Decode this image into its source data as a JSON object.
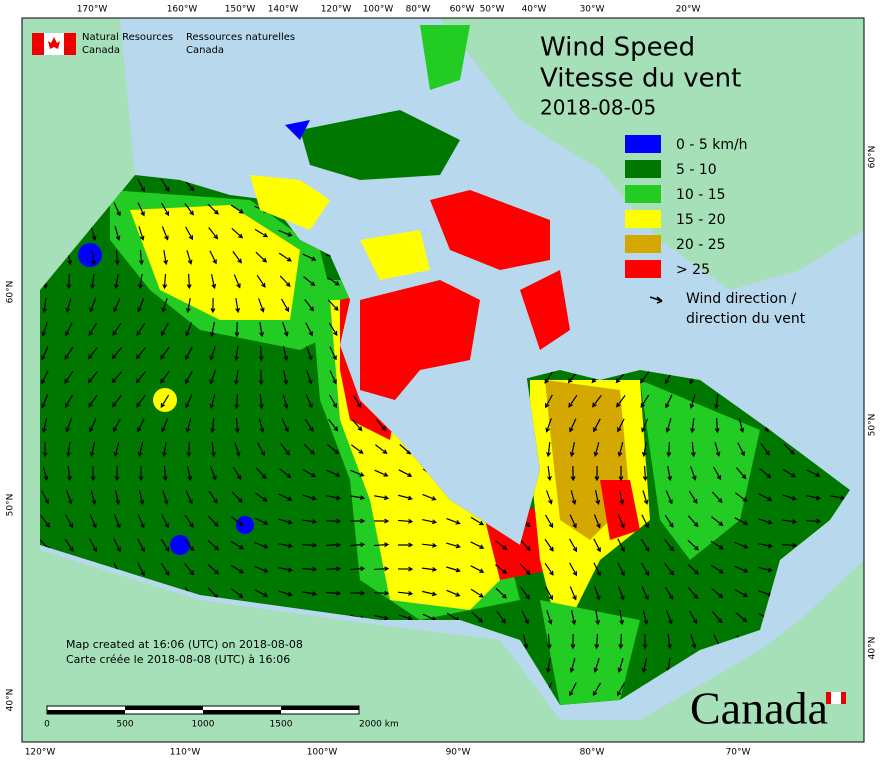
{
  "header": {
    "agency_en": [
      "Natural Resources",
      "Canada"
    ],
    "agency_fr": [
      "Ressources naturelles",
      "Canada"
    ]
  },
  "title": {
    "lines": [
      "Wind Speed",
      "Vitesse du vent"
    ],
    "date": "2018-08-05"
  },
  "legend": {
    "items": [
      {
        "label": "0 - 5 km/h",
        "color": "#0000ff"
      },
      {
        "label": "5 - 10",
        "color": "#007800"
      },
      {
        "label": "10 - 15",
        "color": "#22cc22"
      },
      {
        "label": "15 - 20",
        "color": "#ffff00"
      },
      {
        "label": "20 - 25",
        "color": "#d4a800"
      },
      {
        "label": "> 25",
        "color": "#ff0000"
      }
    ],
    "arrow_label": [
      "Wind direction /",
      "direction du vent"
    ]
  },
  "graticule": {
    "top": [
      "170°W",
      "160°W",
      "150°W",
      "140°W",
      "120°W",
      "100°W",
      "80°W",
      "60°W",
      "50°W",
      "40°W",
      "30°W",
      "20°W"
    ],
    "bottom": [
      "120°W",
      "110°W",
      "100°W",
      "90°W",
      "80°W",
      "70°W"
    ],
    "left": [
      "60°N",
      "50°N",
      "40°N"
    ],
    "right": [
      "60°N",
      "50°N",
      "40°N"
    ]
  },
  "footer": {
    "created": [
      "Map created at 16:06 (UTC) on 2018-08-08",
      "Carte créée le 2018-08-08 (UTC) à 16:06"
    ]
  },
  "scale": [
    "0",
    "500",
    "1000",
    "1500",
    "2000 km"
  ],
  "wordmark": "Canada"
}
